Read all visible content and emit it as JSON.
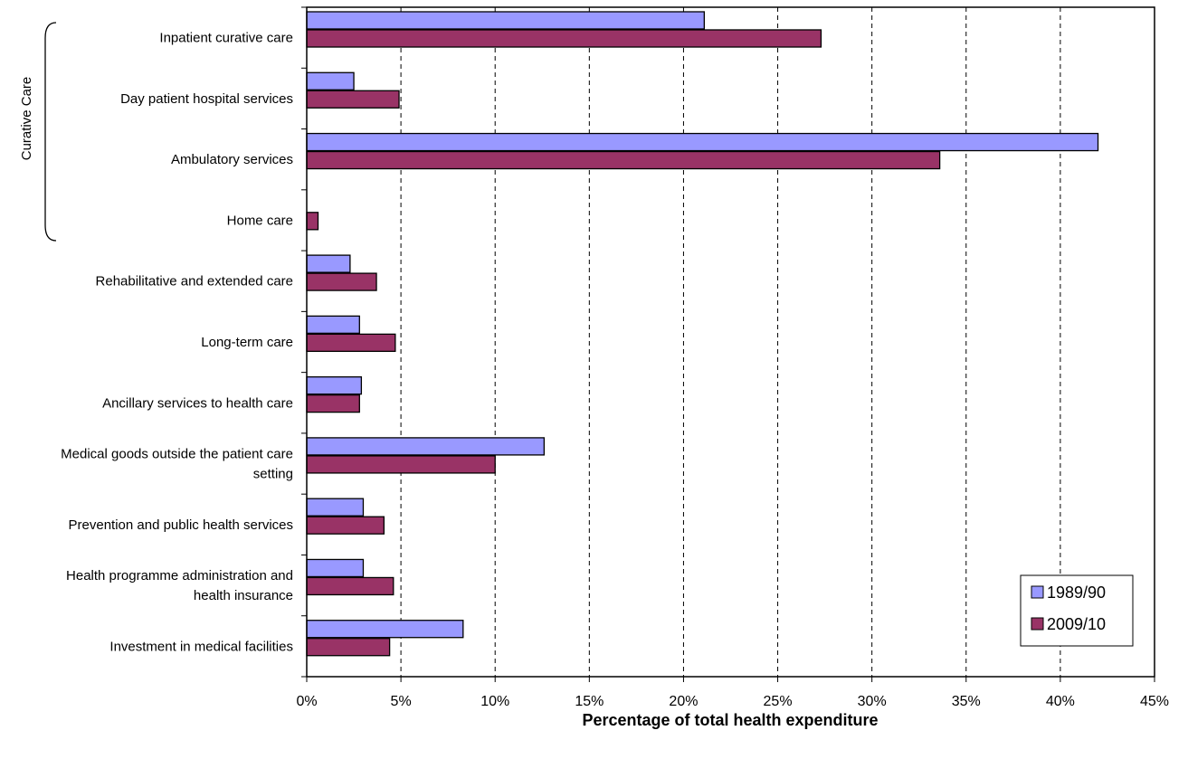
{
  "chart_data": {
    "type": "bar",
    "orientation": "horizontal",
    "xlabel": "Percentage of total health expenditure",
    "xlim": [
      0,
      45
    ],
    "x_ticks": [
      "0%",
      "5%",
      "10%",
      "15%",
      "20%",
      "25%",
      "30%",
      "35%",
      "40%",
      "45%"
    ],
    "grid": "vertical dashed",
    "legend_position": "bottom-right",
    "group_annotation": "Curative Care",
    "categories": [
      [
        "Inpatient curative care"
      ],
      [
        "Day patient hospital services"
      ],
      [
        "Ambulatory services"
      ],
      [
        "Home care"
      ],
      [
        "Rehabilitative and extended care"
      ],
      [
        "Long-term care"
      ],
      [
        "Ancillary services to health care"
      ],
      [
        "Medical goods outside the patient care",
        "setting"
      ],
      [
        "Prevention and public health services"
      ],
      [
        "Health programme administration and",
        "health insurance"
      ],
      [
        "Investment in medical facilities"
      ]
    ],
    "series": [
      {
        "name": "1989/90",
        "color": "#9999ff",
        "values": [
          21.1,
          2.5,
          42.0,
          0.0,
          2.3,
          2.8,
          2.9,
          12.6,
          3.0,
          3.0,
          8.3
        ]
      },
      {
        "name": "2009/10",
        "color": "#993366",
        "values": [
          27.3,
          4.9,
          33.6,
          0.6,
          3.7,
          4.7,
          2.8,
          10.0,
          4.1,
          4.6,
          4.4
        ]
      }
    ]
  }
}
